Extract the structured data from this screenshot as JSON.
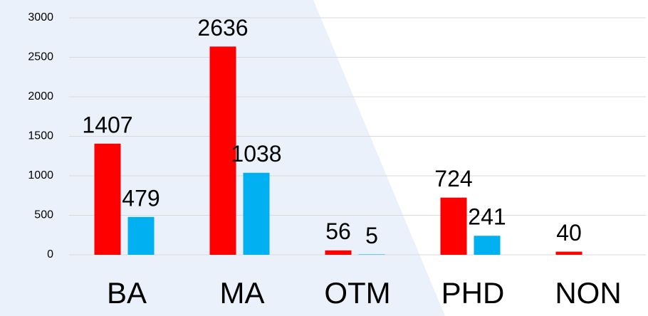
{
  "chart_data": {
    "type": "bar",
    "categories": [
      "BA",
      "MA",
      "OTM",
      "PHD",
      "NON"
    ],
    "series": [
      {
        "color": "#ff0000",
        "values": [
          1407,
          2636,
          56,
          724,
          40
        ]
      },
      {
        "color": "#00b0f0",
        "values": [
          479,
          1038,
          5,
          241,
          null
        ]
      }
    ],
    "ylim": [
      0,
      3000
    ],
    "yticks": [
      0,
      500,
      1000,
      1500,
      2000,
      2500,
      3000
    ],
    "grid": true
  }
}
